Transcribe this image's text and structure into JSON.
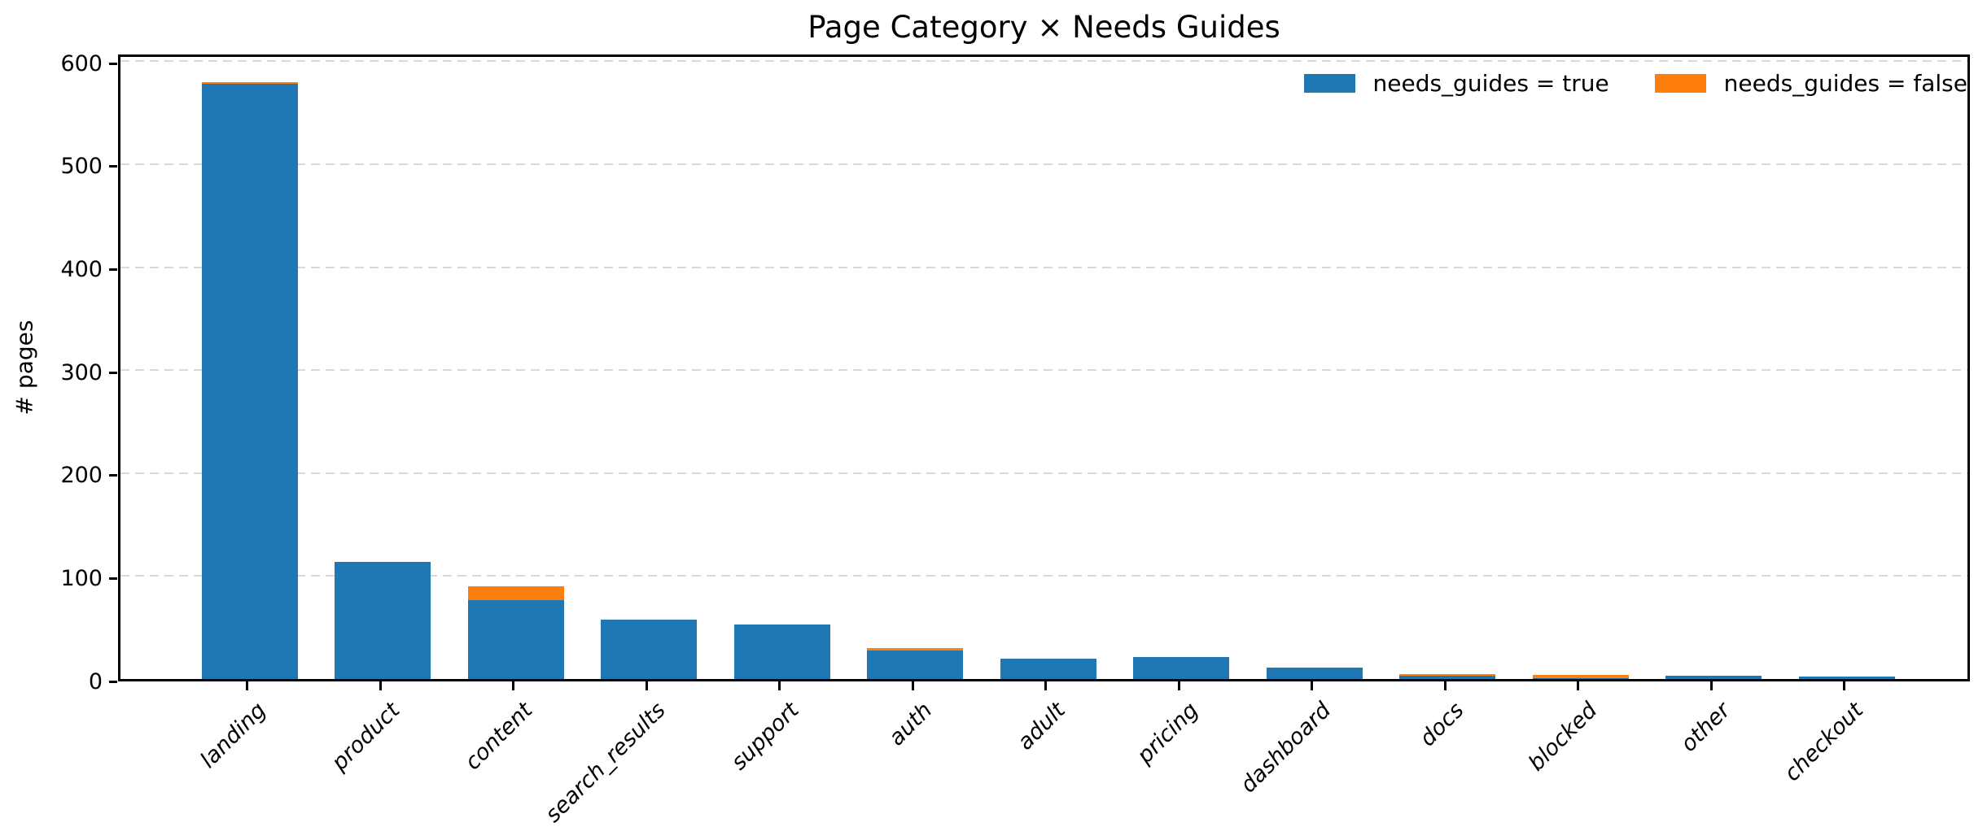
{
  "figure": {
    "title": "Page Category × Needs Guides",
    "ylabel": "# pages"
  },
  "legend": {
    "items": [
      {
        "label": "needs_guides = true",
        "color": "#1f77b4"
      },
      {
        "label": "needs_guides = false",
        "color": "#ff7f0e"
      }
    ]
  },
  "chart_data": {
    "type": "bar",
    "stacked": true,
    "title": "Page Category × Needs Guides",
    "xlabel": "",
    "ylabel": "# pages",
    "categories": [
      "landing",
      "product",
      "content",
      "search_results",
      "support",
      "auth",
      "adult",
      "pricing",
      "dashboard",
      "docs",
      "blocked",
      "other",
      "checkout"
    ],
    "series": [
      {
        "name": "needs_guides = true",
        "color": "#1f77b4",
        "values": [
          578,
          114,
          77,
          58,
          53,
          28,
          20,
          21,
          11,
          3,
          1,
          3,
          2
        ]
      },
      {
        "name": "needs_guides = false",
        "color": "#ff7f0e",
        "values": [
          2,
          0,
          13,
          0,
          0,
          2,
          0,
          0,
          0,
          2,
          3,
          0,
          0
        ]
      }
    ],
    "totals": [
      580,
      114,
      90,
      58,
      53,
      30,
      20,
      21,
      11,
      5,
      4,
      3,
      2
    ],
    "ylim": [
      0,
      609
    ],
    "yticks": [
      0,
      100,
      200,
      300,
      400,
      500,
      600
    ],
    "grid": "horizontal-dashed",
    "legend_position": "upper-right",
    "x_tick_rotation": 45
  }
}
